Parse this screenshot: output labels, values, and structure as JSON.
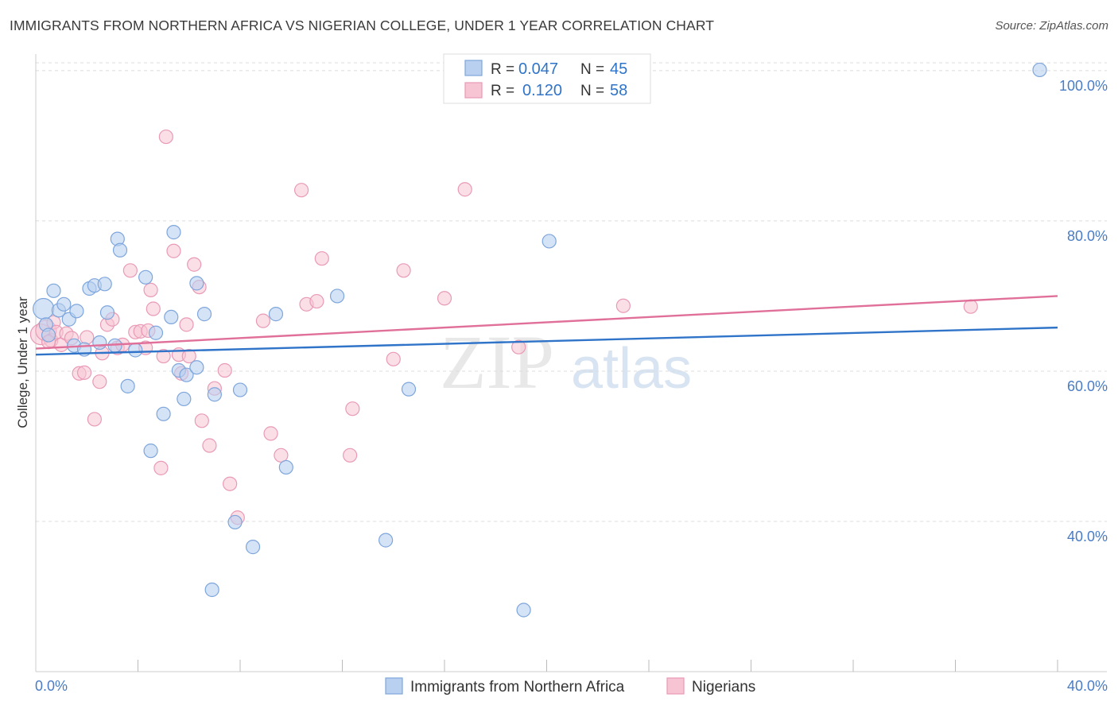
{
  "header": {
    "title": "IMMIGRANTS FROM NORTHERN AFRICA VS NIGERIAN COLLEGE, UNDER 1 YEAR CORRELATION CHART",
    "source": "Source: ZipAtlas.com"
  },
  "watermark": {
    "zip": "ZIP",
    "atlas": "atlas"
  },
  "legend": {
    "r_label": "R = ",
    "n_label": "N = ",
    "series_a": {
      "r": "0.047",
      "n": "45"
    },
    "series_b": {
      "r": "0.120",
      "n": "58"
    }
  },
  "chart_data": {
    "type": "scatter",
    "title": "IMMIGRANTS FROM NORTHERN AFRICA VS NIGERIAN COLLEGE, UNDER 1 YEAR CORRELATION CHART",
    "xlabel": "",
    "ylabel": "College, Under 1 year",
    "xlim": [
      0,
      40
    ],
    "ylim": [
      20,
      102
    ],
    "x_tick_labels": [
      "0.0%",
      "40.0%"
    ],
    "y_ticks": [
      40,
      60,
      80,
      100
    ],
    "y_tick_labels": [
      "40.0%",
      "60.0%",
      "80.0%",
      "100.0%"
    ],
    "grid": true,
    "legend_position": "top-center",
    "colors": {
      "series_a_fill": "#b9d0f0",
      "series_a_stroke": "#7ea6dc",
      "series_a_line": "#2f74c8",
      "series_b_fill": "#f7c4d4",
      "series_b_stroke": "#e99ab6",
      "series_b_line": "#e07099",
      "value_text": "#2f74c8"
    },
    "series": [
      {
        "name": "Immigrants from Northern Africa",
        "trend": {
          "x0": 0,
          "y0": 62.2,
          "x1": 40,
          "y1": 65.8
        },
        "points": [
          [
            0.3,
            68.3
          ],
          [
            0.4,
            66.2
          ],
          [
            0.5,
            64.8
          ],
          [
            0.7,
            70.7
          ],
          [
            0.9,
            68.1
          ],
          [
            1.1,
            68.9
          ],
          [
            1.3,
            66.9
          ],
          [
            1.5,
            63.4
          ],
          [
            1.6,
            68.0
          ],
          [
            1.9,
            62.9
          ],
          [
            2.1,
            71.0
          ],
          [
            2.3,
            71.4
          ],
          [
            2.5,
            63.8
          ],
          [
            2.7,
            71.6
          ],
          [
            2.8,
            67.8
          ],
          [
            3.1,
            63.4
          ],
          [
            3.2,
            77.6
          ],
          [
            3.3,
            76.1
          ],
          [
            3.6,
            58.0
          ],
          [
            3.9,
            62.8
          ],
          [
            4.3,
            72.5
          ],
          [
            4.5,
            49.4
          ],
          [
            4.7,
            65.1
          ],
          [
            5.0,
            54.3
          ],
          [
            5.3,
            67.2
          ],
          [
            5.4,
            78.5
          ],
          [
            5.6,
            60.1
          ],
          [
            5.8,
            56.3
          ],
          [
            5.9,
            59.5
          ],
          [
            6.3,
            71.7
          ],
          [
            6.3,
            60.5
          ],
          [
            6.6,
            67.6
          ],
          [
            6.9,
            30.9
          ],
          [
            7.0,
            56.9
          ],
          [
            7.8,
            39.9
          ],
          [
            8.0,
            57.5
          ],
          [
            8.5,
            36.6
          ],
          [
            9.4,
            67.6
          ],
          [
            9.8,
            47.2
          ],
          [
            11.8,
            70.0
          ],
          [
            13.7,
            37.5
          ],
          [
            14.6,
            57.6
          ],
          [
            19.1,
            28.2
          ],
          [
            20.1,
            77.3
          ],
          [
            39.3,
            100.1
          ]
        ]
      },
      {
        "name": "Nigerians",
        "trend": {
          "x0": 0,
          "y0": 63.0,
          "x1": 40,
          "y1": 70.0
        },
        "points": [
          [
            0.2,
            64.9
          ],
          [
            0.4,
            65.4
          ],
          [
            0.6,
            64.1
          ],
          [
            0.7,
            66.5
          ],
          [
            0.8,
            65.2
          ],
          [
            1.0,
            63.5
          ],
          [
            1.2,
            65.0
          ],
          [
            1.4,
            64.4
          ],
          [
            1.7,
            59.7
          ],
          [
            1.9,
            59.8
          ],
          [
            2.0,
            64.5
          ],
          [
            2.3,
            53.6
          ],
          [
            2.5,
            58.6
          ],
          [
            2.6,
            62.4
          ],
          [
            2.8,
            66.2
          ],
          [
            3.0,
            66.9
          ],
          [
            3.2,
            63.1
          ],
          [
            3.4,
            63.5
          ],
          [
            3.7,
            73.4
          ],
          [
            3.9,
            65.2
          ],
          [
            4.1,
            65.3
          ],
          [
            4.3,
            63.1
          ],
          [
            4.4,
            65.4
          ],
          [
            4.5,
            70.8
          ],
          [
            4.6,
            68.3
          ],
          [
            4.9,
            47.1
          ],
          [
            5.0,
            62.0
          ],
          [
            5.1,
            91.2
          ],
          [
            5.4,
            76.0
          ],
          [
            5.6,
            62.2
          ],
          [
            5.7,
            59.7
          ],
          [
            5.9,
            66.2
          ],
          [
            6.0,
            62.0
          ],
          [
            6.2,
            74.2
          ],
          [
            6.4,
            71.2
          ],
          [
            6.5,
            53.4
          ],
          [
            6.8,
            50.1
          ],
          [
            7.0,
            57.7
          ],
          [
            7.4,
            60.1
          ],
          [
            7.6,
            45.0
          ],
          [
            7.9,
            40.5
          ],
          [
            8.9,
            66.7
          ],
          [
            9.2,
            51.7
          ],
          [
            9.6,
            48.8
          ],
          [
            10.4,
            84.1
          ],
          [
            10.6,
            68.9
          ],
          [
            11.0,
            69.3
          ],
          [
            11.2,
            75.0
          ],
          [
            12.3,
            48.8
          ],
          [
            12.4,
            55.0
          ],
          [
            14.0,
            61.6
          ],
          [
            14.4,
            73.4
          ],
          [
            16.0,
            69.7
          ],
          [
            16.8,
            84.2
          ],
          [
            18.9,
            63.2
          ],
          [
            23.0,
            68.7
          ],
          [
            36.6,
            68.6
          ],
          [
            0.5,
            63.9
          ]
        ]
      }
    ]
  },
  "bottom_legend": {
    "item_a": "Immigrants from Northern Africa",
    "item_b": "Nigerians"
  }
}
